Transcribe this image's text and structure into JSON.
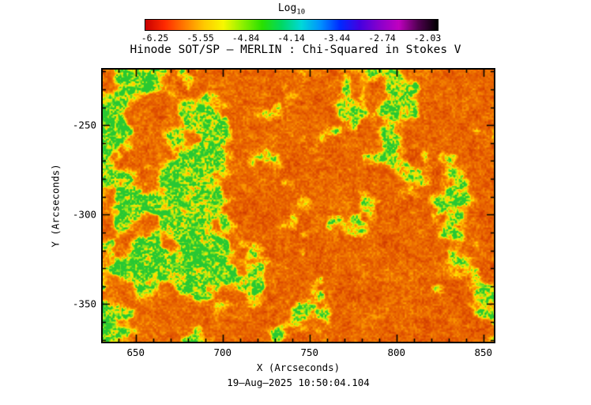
{
  "figure": {
    "title": "Hinode SOT/SP — MERLIN : Chi-Squared in Stokes V",
    "timestamp": "19—Aug—2025 10:50:04.104"
  },
  "colorbar": {
    "label_main": "Log",
    "label_sub": "10",
    "ticks": [
      "-6.25",
      "-5.55",
      "-4.84",
      "-4.14",
      "-3.44",
      "-2.74",
      "-2.03"
    ],
    "gradient": [
      "#c80000",
      "#ff2a00",
      "#ff7a00",
      "#ffc800",
      "#f8f800",
      "#8cf000",
      "#28e000",
      "#00d864",
      "#00d8d8",
      "#0090ff",
      "#0028ff",
      "#4400e0",
      "#8800cc",
      "#c000c0",
      "#500050",
      "#000000"
    ]
  },
  "x_axis": {
    "label": "X (Arcseconds)",
    "ticks": [
      650,
      700,
      750,
      800,
      850
    ],
    "minor_step": 10,
    "range": [
      631,
      856
    ]
  },
  "y_axis": {
    "label": "Y (Arcseconds)",
    "ticks": [
      -250,
      -300,
      -350
    ],
    "minor_step": 10,
    "range": [
      -371,
      -219
    ]
  },
  "heatmap_palette": [
    {
      "t": 0.0,
      "c": "#b01800"
    },
    {
      "t": 0.3,
      "c": "#e05000"
    },
    {
      "t": 0.5,
      "c": "#f07800"
    },
    {
      "t": 0.65,
      "c": "#ffaa00"
    },
    {
      "t": 0.78,
      "c": "#ffe600"
    },
    {
      "t": 0.88,
      "c": "#a0e818"
    },
    {
      "t": 1.0,
      "c": "#28c832"
    }
  ],
  "chart_data": {
    "type": "heatmap",
    "title": "Hinode SOT/SP — MERLIN : Chi-Squared in Stokes V",
    "colorbar_label": "Log10",
    "colorbar_ticks": [
      -6.25,
      -5.55,
      -4.84,
      -4.14,
      -3.44,
      -2.74,
      -2.03
    ],
    "xlabel": "X (Arcseconds)",
    "ylabel": "Y (Arcseconds)",
    "xlim": [
      631,
      856
    ],
    "x_ticks": [
      650,
      700,
      750,
      800,
      850
    ],
    "ylim": [
      -371,
      -219
    ],
    "y_ticks": [
      -250,
      -300,
      -350
    ],
    "value_summary": "Log10 chi-squared map dominated by values near -5.5 to -4.8 (red/orange speckle) with connected patches near -4.1 (green) concentrated toward the left and upper-left of the field; sparse small green speckles toward the right",
    "timestamp": "19-Aug-2025 10:50:04.104"
  }
}
